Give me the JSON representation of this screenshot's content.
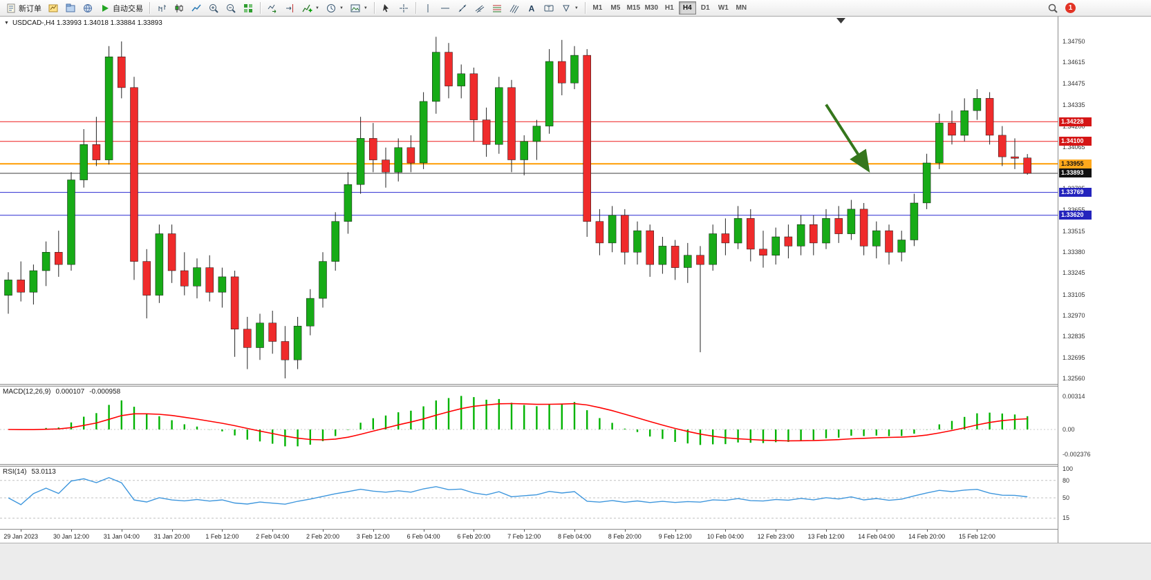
{
  "toolbar": {
    "new_order": "新订单",
    "auto_trading": "自动交易",
    "timeframes": [
      "M1",
      "M5",
      "M15",
      "M30",
      "H1",
      "H4",
      "D1",
      "W1",
      "MN"
    ],
    "active_timeframe": "H4",
    "notification_badge": "1"
  },
  "chart_header": {
    "title": "USDCAD-,H4 1.33993 1.34018 1.33884 1.33893"
  },
  "chart_data": {
    "type": "candlestick",
    "symbol": "USDCAD-",
    "period": "H4",
    "last_quote": {
      "open": 1.33993,
      "high": 1.34018,
      "low": 1.33884,
      "close": 1.33893
    },
    "style": {
      "bull_color": "#17ab17",
      "bear_color": "#ef2b2b",
      "wick_color": "#222222"
    },
    "price_axis": {
      "top_price": 1.3475,
      "bottom_price": 1.3256,
      "ticks": [
        "1.34750",
        "1.34615",
        "1.34475",
        "1.34335",
        "1.34200",
        "1.34065",
        "1.33930",
        "1.33795",
        "1.33655",
        "1.33515",
        "1.33380",
        "1.33245",
        "1.33105",
        "1.32970",
        "1.32835",
        "1.32695",
        "1.32560"
      ]
    },
    "time_labels": [
      "29 Jan 2023",
      "30 Jan 12:00",
      "31 Jan 04:00",
      "31 Jan 20:00",
      "1 Feb 12:00",
      "2 Feb 04:00",
      "2 Feb 20:00",
      "3 Feb 12:00",
      "6 Feb 04:00",
      "6 Feb 20:00",
      "7 Feb 12:00",
      "8 Feb 04:00",
      "8 Feb 20:00",
      "9 Feb 12:00",
      "10 Feb 04:00",
      "12 Feb 23:00",
      "13 Feb 12:00",
      "14 Feb 04:00",
      "14 Feb 20:00",
      "15 Feb 12:00"
    ],
    "first_label_bar": 1,
    "bars_per_label": 4,
    "candles": [
      [
        1.331,
        1.3325,
        1.3298,
        1.332
      ],
      [
        1.332,
        1.3332,
        1.3306,
        1.3312
      ],
      [
        1.3312,
        1.333,
        1.3304,
        1.3326
      ],
      [
        1.3326,
        1.3345,
        1.3316,
        1.3338
      ],
      [
        1.3338,
        1.3352,
        1.3322,
        1.333
      ],
      [
        1.333,
        1.339,
        1.3326,
        1.3385
      ],
      [
        1.3385,
        1.3418,
        1.338,
        1.3408
      ],
      [
        1.3408,
        1.3426,
        1.3394,
        1.3398
      ],
      [
        1.3398,
        1.3472,
        1.3395,
        1.3465
      ],
      [
        1.3465,
        1.3475,
        1.3438,
        1.3445
      ],
      [
        1.3445,
        1.3452,
        1.332,
        1.3332
      ],
      [
        1.3332,
        1.334,
        1.3295,
        1.331
      ],
      [
        1.331,
        1.3356,
        1.3305,
        1.335
      ],
      [
        1.335,
        1.3356,
        1.3318,
        1.3326
      ],
      [
        1.3326,
        1.3338,
        1.331,
        1.3316
      ],
      [
        1.3316,
        1.3334,
        1.3308,
        1.3328
      ],
      [
        1.3328,
        1.3336,
        1.3306,
        1.3312
      ],
      [
        1.3312,
        1.3328,
        1.3302,
        1.3322
      ],
      [
        1.3322,
        1.3326,
        1.327,
        1.3288
      ],
      [
        1.3288,
        1.3296,
        1.3262,
        1.3276
      ],
      [
        1.3276,
        1.3298,
        1.3268,
        1.3292
      ],
      [
        1.3292,
        1.33,
        1.3272,
        1.328
      ],
      [
        1.328,
        1.329,
        1.3256,
        1.3268
      ],
      [
        1.3268,
        1.3296,
        1.3262,
        1.329
      ],
      [
        1.329,
        1.3314,
        1.3284,
        1.3308
      ],
      [
        1.3308,
        1.3338,
        1.3302,
        1.3332
      ],
      [
        1.3332,
        1.3364,
        1.3326,
        1.3358
      ],
      [
        1.3358,
        1.339,
        1.335,
        1.3382
      ],
      [
        1.3382,
        1.3426,
        1.3376,
        1.3412
      ],
      [
        1.3412,
        1.3422,
        1.339,
        1.3398
      ],
      [
        1.3398,
        1.3406,
        1.338,
        1.339
      ],
      [
        1.339,
        1.3412,
        1.3384,
        1.3406
      ],
      [
        1.3406,
        1.3414,
        1.339,
        1.3396
      ],
      [
        1.3396,
        1.3442,
        1.3392,
        1.3436
      ],
      [
        1.3436,
        1.3478,
        1.3428,
        1.3468
      ],
      [
        1.3468,
        1.3474,
        1.3438,
        1.3446
      ],
      [
        1.3446,
        1.346,
        1.3438,
        1.3454
      ],
      [
        1.3454,
        1.3458,
        1.341,
        1.3424
      ],
      [
        1.3424,
        1.3432,
        1.34,
        1.3408
      ],
      [
        1.3408,
        1.3452,
        1.3402,
        1.3445
      ],
      [
        1.3445,
        1.345,
        1.339,
        1.3398
      ],
      [
        1.3398,
        1.3414,
        1.3388,
        1.341
      ],
      [
        1.341,
        1.3424,
        1.3398,
        1.342
      ],
      [
        1.342,
        1.347,
        1.3415,
        1.3462
      ],
      [
        1.3462,
        1.3476,
        1.344,
        1.3448
      ],
      [
        1.3448,
        1.3472,
        1.3444,
        1.3466
      ],
      [
        1.3466,
        1.347,
        1.3348,
        1.3358
      ],
      [
        1.3358,
        1.3366,
        1.3336,
        1.3344
      ],
      [
        1.3344,
        1.3368,
        1.3338,
        1.3362
      ],
      [
        1.3362,
        1.3366,
        1.333,
        1.3338
      ],
      [
        1.3338,
        1.3358,
        1.333,
        1.3352
      ],
      [
        1.3352,
        1.3356,
        1.3322,
        1.333
      ],
      [
        1.333,
        1.3348,
        1.3324,
        1.3342
      ],
      [
        1.3342,
        1.3346,
        1.332,
        1.3328
      ],
      [
        1.3328,
        1.3344,
        1.3318,
        1.3336
      ],
      [
        1.3336,
        1.3342,
        1.3273,
        1.333
      ],
      [
        1.333,
        1.3356,
        1.3326,
        1.335
      ],
      [
        1.335,
        1.336,
        1.3336,
        1.3344
      ],
      [
        1.3344,
        1.3368,
        1.334,
        1.336
      ],
      [
        1.336,
        1.3366,
        1.3332,
        1.334
      ],
      [
        1.334,
        1.3352,
        1.3328,
        1.3336
      ],
      [
        1.3336,
        1.3354,
        1.333,
        1.3348
      ],
      [
        1.3348,
        1.3356,
        1.3334,
        1.3342
      ],
      [
        1.3342,
        1.3362,
        1.3336,
        1.3356
      ],
      [
        1.3356,
        1.3362,
        1.3336,
        1.3344
      ],
      [
        1.3344,
        1.3366,
        1.334,
        1.336
      ],
      [
        1.336,
        1.3368,
        1.3344,
        1.335
      ],
      [
        1.335,
        1.3372,
        1.3346,
        1.3366
      ],
      [
        1.3366,
        1.337,
        1.3336,
        1.3342
      ],
      [
        1.3342,
        1.3358,
        1.3334,
        1.3352
      ],
      [
        1.3352,
        1.3356,
        1.333,
        1.3338
      ],
      [
        1.3338,
        1.3352,
        1.3332,
        1.3346
      ],
      [
        1.3346,
        1.3376,
        1.3342,
        1.337
      ],
      [
        1.337,
        1.3402,
        1.3366,
        1.3396
      ],
      [
        1.3396,
        1.3428,
        1.3392,
        1.3422
      ],
      [
        1.3422,
        1.343,
        1.3408,
        1.3414
      ],
      [
        1.3414,
        1.3438,
        1.341,
        1.343
      ],
      [
        1.343,
        1.3444,
        1.3424,
        1.3438
      ],
      [
        1.3438,
        1.3442,
        1.3408,
        1.3414
      ],
      [
        1.3414,
        1.342,
        1.3394,
        1.34
      ],
      [
        1.34,
        1.3412,
        1.3392,
        1.3399
      ],
      [
        1.33993,
        1.34018,
        1.33884,
        1.33893
      ]
    ],
    "hlines": [
      {
        "price": 1.34228,
        "color": "#ee1c1c",
        "width": 1,
        "badge_bg": "#d51616",
        "badge_fg": "#ffffff"
      },
      {
        "price": 1.341,
        "color": "#ee1c1c",
        "width": 1,
        "badge_bg": "#d51616",
        "badge_fg": "#ffffff"
      },
      {
        "price": 1.33955,
        "color": "#ff9c00",
        "width": 2,
        "badge_bg": "#ffa81c",
        "badge_fg": "#111111"
      },
      {
        "price": 1.33893,
        "color": "#3c3c3c",
        "width": 1,
        "badge_bg": "#111111",
        "badge_fg": "#ffffff"
      },
      {
        "price": 1.33769,
        "color": "#2a2ad0",
        "width": 1,
        "badge_bg": "#2424bd",
        "badge_fg": "#ffffff"
      },
      {
        "price": 1.3362,
        "color": "#2a2ad0",
        "width": 1,
        "badge_bg": "#2424bd",
        "badge_fg": "#ffffff"
      }
    ],
    "arrow_annotation": {
      "from_bar": 65,
      "from_price": 1.3434,
      "to_bar": 68.3,
      "to_price": 1.3392,
      "color": "#35761c"
    },
    "indicators": {
      "macd": {
        "label": "MACD(12,26,9)",
        "params": [
          12,
          26,
          9
        ],
        "value_main": "0.000107",
        "value_signal": "-0.000958",
        "scale_top": "0.00314",
        "scale_zero": "0.00",
        "scale_bottom": "-0.002376",
        "histogram_color": "#00b300",
        "signal_color": "#ff0000"
      },
      "rsi": {
        "label": "RSI(14)",
        "period": 14,
        "value": "53.0113",
        "scale_labels": [
          "100",
          "80",
          "50",
          "15"
        ],
        "levels": [
          80,
          50,
          15
        ],
        "line_color": "#3d96dd"
      }
    }
  }
}
